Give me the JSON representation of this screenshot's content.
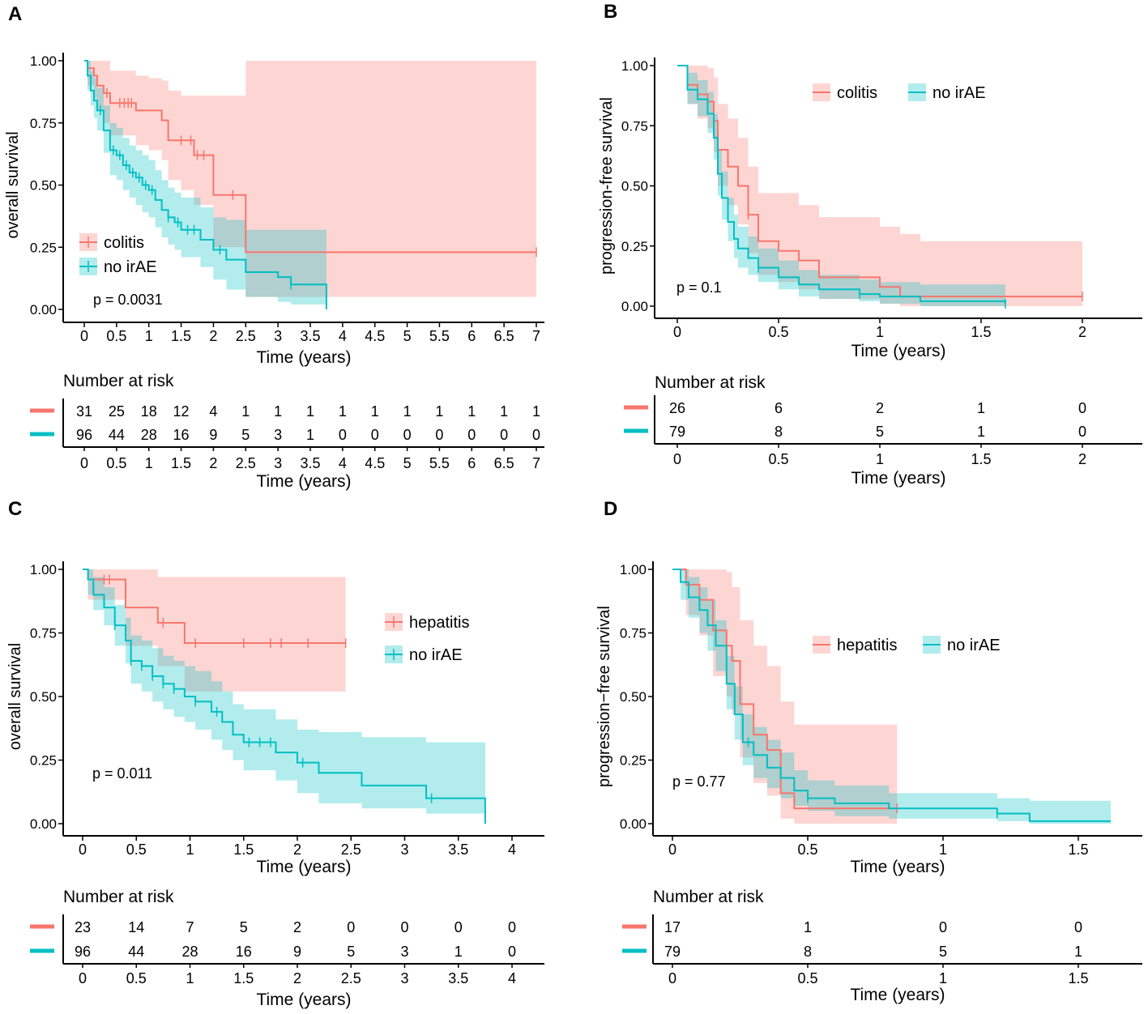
{
  "colors": {
    "event": "#F8766D",
    "no_irae": "#00BFC4",
    "event_band": "#F8766D",
    "no_irae_band": "#00BFC4"
  },
  "chart_data": [
    {
      "panel_label": "A",
      "type": "line",
      "subtype": "kaplan-meier",
      "ylabel": "overall survival",
      "xlabel": "Time (years)",
      "xlim": [
        0,
        7
      ],
      "ylim": [
        0,
        1
      ],
      "x_ticks": [
        0,
        0.5,
        1,
        1.5,
        2,
        2.5,
        3,
        3.5,
        4,
        4.5,
        5,
        5.5,
        6,
        6.5,
        7
      ],
      "x_tick_labels": [
        "0",
        "0.5",
        "1",
        "1.5",
        "2",
        "2.5",
        "3",
        "3.5",
        "4",
        "4.5",
        "5",
        "5.5",
        "6",
        "6.5",
        "7"
      ],
      "y_ticks": [
        0,
        0.25,
        0.5,
        0.75,
        1
      ],
      "y_tick_labels": [
        "0.00",
        "0.25",
        "0.50",
        "0.75",
        "1.00"
      ],
      "legend": [
        "colitis",
        "no irAE"
      ],
      "legend_position": "bottom-left",
      "pvalue": "p = 0.0031",
      "series": [
        {
          "name": "colitis",
          "time": [
            0,
            0.05,
            0.15,
            0.2,
            0.3,
            0.4,
            0.5,
            0.8,
            1.0,
            1.2,
            1.3,
            1.5,
            1.7,
            2.0,
            2.5,
            7.0
          ],
          "surv": [
            1,
            0.97,
            0.94,
            0.9,
            0.87,
            0.83,
            0.83,
            0.8,
            0.8,
            0.76,
            0.68,
            0.68,
            0.62,
            0.46,
            0.23,
            0.23
          ],
          "lower": [
            1,
            0.9,
            0.85,
            0.8,
            0.75,
            0.7,
            0.7,
            0.66,
            0.64,
            0.6,
            0.52,
            0.48,
            0.42,
            0.25,
            0.05,
            0.05
          ],
          "upper": [
            1,
            1,
            1,
            1,
            1,
            0.96,
            0.96,
            0.94,
            0.93,
            0.92,
            0.88,
            0.86,
            0.86,
            0.86,
            1,
            1
          ],
          "censor_times": [
            0.35,
            0.55,
            0.62,
            0.68,
            0.73,
            1.5,
            1.65,
            1.75,
            1.85,
            2.3,
            7.0
          ]
        },
        {
          "name": "no irAE",
          "time": [
            0,
            0.05,
            0.1,
            0.15,
            0.2,
            0.3,
            0.4,
            0.5,
            0.6,
            0.7,
            0.8,
            0.9,
            1.0,
            1.1,
            1.2,
            1.3,
            1.4,
            1.5,
            1.8,
            2.0,
            2.2,
            2.5,
            3.0,
            3.2,
            3.75
          ],
          "surv": [
            1,
            0.94,
            0.88,
            0.84,
            0.8,
            0.72,
            0.64,
            0.62,
            0.58,
            0.55,
            0.53,
            0.5,
            0.48,
            0.44,
            0.4,
            0.37,
            0.35,
            0.32,
            0.28,
            0.24,
            0.2,
            0.15,
            0.13,
            0.1,
            0.0
          ],
          "lower": [
            1,
            0.88,
            0.82,
            0.77,
            0.72,
            0.63,
            0.54,
            0.52,
            0.48,
            0.45,
            0.42,
            0.39,
            0.37,
            0.33,
            0.29,
            0.26,
            0.24,
            0.21,
            0.17,
            0.12,
            0.08,
            0.05,
            0.03,
            0.02,
            0.0
          ],
          "upper": [
            1,
            1,
            0.96,
            0.93,
            0.89,
            0.82,
            0.75,
            0.73,
            0.69,
            0.66,
            0.64,
            0.62,
            0.6,
            0.56,
            0.52,
            0.49,
            0.47,
            0.45,
            0.41,
            0.37,
            0.36,
            0.32,
            0.32,
            0.32,
            0.32
          ],
          "censor_times": [
            0.25,
            0.45,
            0.55,
            0.65,
            0.75,
            0.85,
            0.95,
            1.05,
            1.3,
            1.45,
            1.6,
            1.7,
            2.1,
            3.2
          ]
        }
      ],
      "risk_table": {
        "title": "Number at risk",
        "times": [
          0,
          0.5,
          1,
          1.5,
          2,
          2.5,
          3,
          3.5,
          4,
          4.5,
          5,
          5.5,
          6,
          6.5,
          7
        ],
        "rows": [
          {
            "group": "colitis",
            "counts": [
              "31",
              "25",
              "18",
              "12",
              "4",
              "1",
              "1",
              "1",
              "1",
              "1",
              "1",
              "1",
              "1",
              "1",
              "1"
            ]
          },
          {
            "group": "no irAE",
            "counts": [
              "96",
              "44",
              "28",
              "16",
              "9",
              "5",
              "3",
              "1",
              "0",
              "0",
              "0",
              "0",
              "0",
              "0",
              "0"
            ]
          }
        ],
        "xlabel": "Time (years)",
        "tick_labels": [
          "0",
          "0.5",
          "1",
          "1.5",
          "2",
          "2.5",
          "3",
          "3.5",
          "4",
          "4.5",
          "5",
          "5.5",
          "6",
          "6.5",
          "7"
        ]
      }
    },
    {
      "panel_label": "B",
      "type": "line",
      "subtype": "kaplan-meier",
      "ylabel": "progression-free survival",
      "xlabel": "Time (years)",
      "xlim": [
        0,
        2.2
      ],
      "ylim": [
        0,
        1
      ],
      "x_ticks": [
        0,
        0.5,
        1,
        1.5,
        2
      ],
      "x_tick_labels": [
        "0",
        "0.5",
        "1",
        "1.5",
        "2"
      ],
      "y_ticks": [
        0,
        0.25,
        0.5,
        0.75,
        1
      ],
      "y_tick_labels": [
        "0.00",
        "0.25",
        "0.50",
        "0.75",
        "1.00"
      ],
      "legend": [
        "colitis",
        "no irAE"
      ],
      "legend_position": "top-right",
      "pvalue": "p = 0.1",
      "series": [
        {
          "name": "colitis",
          "time": [
            0,
            0.05,
            0.1,
            0.15,
            0.18,
            0.2,
            0.25,
            0.3,
            0.35,
            0.4,
            0.5,
            0.6,
            0.7,
            1.0,
            1.1,
            1.2,
            2.0
          ],
          "surv": [
            1,
            0.92,
            0.88,
            0.85,
            0.77,
            0.65,
            0.58,
            0.5,
            0.38,
            0.27,
            0.23,
            0.19,
            0.12,
            0.08,
            0.04,
            0.04,
            0.04
          ],
          "lower": [
            1,
            0.84,
            0.78,
            0.74,
            0.64,
            0.5,
            0.42,
            0.34,
            0.22,
            0.13,
            0.1,
            0.07,
            0.03,
            0.01,
            0.0,
            0.0,
            0.0
          ],
          "upper": [
            1,
            1,
            1,
            0.99,
            0.95,
            0.84,
            0.78,
            0.7,
            0.58,
            0.47,
            0.47,
            0.42,
            0.37,
            0.33,
            0.3,
            0.27,
            0.26
          ],
          "censor_times": [
            0.2,
            0.35,
            2.0
          ]
        },
        {
          "name": "no irAE",
          "time": [
            0,
            0.05,
            0.1,
            0.15,
            0.18,
            0.2,
            0.22,
            0.25,
            0.28,
            0.3,
            0.35,
            0.4,
            0.5,
            0.6,
            0.7,
            0.9,
            1.0,
            1.2,
            1.62
          ],
          "surv": [
            1,
            0.9,
            0.86,
            0.8,
            0.7,
            0.55,
            0.45,
            0.35,
            0.28,
            0.24,
            0.2,
            0.16,
            0.12,
            0.09,
            0.07,
            0.05,
            0.04,
            0.02,
            0.01
          ],
          "lower": [
            1,
            0.84,
            0.79,
            0.72,
            0.61,
            0.46,
            0.36,
            0.27,
            0.2,
            0.16,
            0.13,
            0.1,
            0.07,
            0.04,
            0.03,
            0.02,
            0.01,
            0.0,
            0.0
          ],
          "upper": [
            1,
            0.97,
            0.94,
            0.89,
            0.8,
            0.65,
            0.56,
            0.45,
            0.38,
            0.33,
            0.29,
            0.24,
            0.19,
            0.15,
            0.13,
            0.11,
            0.1,
            0.09,
            0.08
          ],
          "censor_times": [
            0.4,
            0.9,
            1.62
          ]
        }
      ],
      "risk_table": {
        "title": "Number at risk",
        "times": [
          0,
          0.5,
          1,
          1.5,
          2
        ],
        "rows": [
          {
            "group": "colitis",
            "counts": [
              "26",
              "6",
              "2",
              "1",
              "0"
            ]
          },
          {
            "group": "no irAE",
            "counts": [
              "79",
              "8",
              "5",
              "1",
              "0"
            ]
          }
        ],
        "xlabel": "Time (years)",
        "tick_labels": [
          "0",
          "0.5",
          "1",
          "1.5",
          "2"
        ]
      }
    },
    {
      "panel_label": "C",
      "type": "line",
      "subtype": "kaplan-meier",
      "ylabel": "overall survival",
      "xlabel": "Time (years)",
      "xlim": [
        0,
        4.25
      ],
      "ylim": [
        0,
        1
      ],
      "x_ticks": [
        0,
        0.5,
        1,
        1.5,
        2,
        2.5,
        3,
        3.5,
        4
      ],
      "x_tick_labels": [
        "0",
        "0.5",
        "1",
        "1.5",
        "2",
        "2.5",
        "3",
        "3.5",
        "4"
      ],
      "y_ticks": [
        0,
        0.25,
        0.5,
        0.75,
        1
      ],
      "y_tick_labels": [
        "0.00",
        "0.25",
        "0.50",
        "0.75",
        "1.00"
      ],
      "legend": [
        "hepatitis",
        "no irAE"
      ],
      "legend_position": "top-right",
      "pvalue": "p = 0.011",
      "series": [
        {
          "name": "hepatitis",
          "time": [
            0,
            0.05,
            0.15,
            0.4,
            0.7,
            0.95,
            2.45
          ],
          "surv": [
            1,
            0.96,
            0.96,
            0.85,
            0.79,
            0.71,
            0.71
          ],
          "lower": [
            1,
            0.88,
            0.88,
            0.7,
            0.62,
            0.52,
            0.52
          ],
          "upper": [
            1,
            1,
            1,
            1,
            0.97,
            0.97,
            0.97
          ],
          "censor_times": [
            0.2,
            0.25,
            0.75,
            1.05,
            1.5,
            1.75,
            1.85,
            2.1,
            2.45
          ]
        },
        {
          "name": "no irAE",
          "time": [
            0,
            0.05,
            0.1,
            0.2,
            0.3,
            0.4,
            0.45,
            0.55,
            0.65,
            0.75,
            0.85,
            0.95,
            1.05,
            1.2,
            1.3,
            1.4,
            1.5,
            1.8,
            2.0,
            2.2,
            2.6,
            3.2,
            3.75
          ],
          "surv": [
            1,
            0.96,
            0.9,
            0.85,
            0.78,
            0.72,
            0.64,
            0.62,
            0.58,
            0.55,
            0.53,
            0.5,
            0.48,
            0.44,
            0.4,
            0.35,
            0.32,
            0.28,
            0.24,
            0.2,
            0.15,
            0.1,
            0.0
          ],
          "lower": [
            1,
            0.9,
            0.84,
            0.78,
            0.7,
            0.63,
            0.55,
            0.52,
            0.48,
            0.45,
            0.42,
            0.4,
            0.37,
            0.33,
            0.29,
            0.25,
            0.21,
            0.17,
            0.12,
            0.08,
            0.06,
            0.04,
            0.0
          ],
          "upper": [
            1,
            1,
            0.97,
            0.93,
            0.86,
            0.81,
            0.74,
            0.72,
            0.69,
            0.66,
            0.64,
            0.62,
            0.6,
            0.56,
            0.52,
            0.47,
            0.45,
            0.41,
            0.37,
            0.36,
            0.34,
            0.32,
            0.32
          ],
          "censor_times": [
            0.3,
            0.45,
            0.55,
            0.65,
            0.75,
            0.85,
            1.05,
            1.25,
            1.55,
            1.65,
            1.75,
            2.05,
            3.25
          ]
        }
      ],
      "risk_table": {
        "title": "Number at risk",
        "times": [
          0,
          0.5,
          1,
          1.5,
          2,
          2.5,
          3,
          3.5,
          4
        ],
        "rows": [
          {
            "group": "hepatitis",
            "counts": [
              "23",
              "14",
              "7",
              "5",
              "2",
              "0",
              "0",
              "0",
              "0"
            ]
          },
          {
            "group": "no irAE",
            "counts": [
              "96",
              "44",
              "28",
              "16",
              "9",
              "5",
              "3",
              "1",
              "0"
            ]
          }
        ],
        "xlabel": "Time (years)",
        "tick_labels": [
          "0",
          "0.5",
          "1",
          "1.5",
          "2",
          "2.5",
          "3",
          "3.5",
          "4"
        ]
      }
    },
    {
      "panel_label": "D",
      "type": "line",
      "subtype": "kaplan-meier",
      "ylabel": "progression−free survival",
      "xlabel": "Time (years)",
      "xlim": [
        0,
        1.72
      ],
      "ylim": [
        0,
        1
      ],
      "x_ticks": [
        0,
        0.5,
        1,
        1.5
      ],
      "x_tick_labels": [
        "0",
        "0.5",
        "1",
        "1.5"
      ],
      "y_ticks": [
        0,
        0.25,
        0.5,
        0.75,
        1
      ],
      "y_tick_labels": [
        "0.00",
        "0.25",
        "0.50",
        "0.75",
        "1.00"
      ],
      "legend": [
        "hepatitis",
        "no irAE"
      ],
      "legend_position": "top-right",
      "pvalue": "p = 0.77",
      "series": [
        {
          "name": "hepatitis",
          "time": [
            0,
            0.05,
            0.1,
            0.15,
            0.2,
            0.22,
            0.25,
            0.3,
            0.35,
            0.4,
            0.45,
            0.83
          ],
          "surv": [
            1,
            0.94,
            0.88,
            0.76,
            0.7,
            0.64,
            0.47,
            0.35,
            0.29,
            0.12,
            0.06,
            0.06
          ],
          "lower": [
            1,
            0.82,
            0.74,
            0.58,
            0.5,
            0.43,
            0.26,
            0.16,
            0.11,
            0.02,
            0.0,
            0.0
          ],
          "upper": [
            1,
            1,
            1,
            1,
            0.99,
            0.93,
            0.8,
            0.7,
            0.62,
            0.48,
            0.39,
            0.39
          ],
          "censor_times": [
            0.83
          ]
        },
        {
          "name": "no irAE",
          "time": [
            0,
            0.03,
            0.06,
            0.1,
            0.13,
            0.16,
            0.2,
            0.23,
            0.26,
            0.3,
            0.35,
            0.4,
            0.45,
            0.5,
            0.6,
            0.8,
            1.2,
            1.32,
            1.62
          ],
          "surv": [
            1,
            0.95,
            0.89,
            0.84,
            0.78,
            0.7,
            0.55,
            0.43,
            0.32,
            0.27,
            0.22,
            0.18,
            0.13,
            0.1,
            0.08,
            0.06,
            0.04,
            0.01,
            0.01
          ],
          "lower": [
            1,
            0.88,
            0.81,
            0.75,
            0.68,
            0.6,
            0.45,
            0.33,
            0.23,
            0.18,
            0.14,
            0.1,
            0.07,
            0.05,
            0.03,
            0.02,
            0.01,
            0.0,
            0.0
          ],
          "upper": [
            1,
            1,
            0.97,
            0.93,
            0.88,
            0.8,
            0.66,
            0.54,
            0.43,
            0.38,
            0.33,
            0.28,
            0.21,
            0.17,
            0.15,
            0.12,
            0.1,
            0.09,
            0.09
          ],
          "censor_times": [
            0.28,
            0.5,
            1.2
          ]
        }
      ],
      "risk_table": {
        "title": "Number at risk",
        "times": [
          0,
          0.5,
          1,
          1.5
        ],
        "rows": [
          {
            "group": "hepatitis",
            "counts": [
              "17",
              "1",
              "0",
              "0"
            ]
          },
          {
            "group": "no irAE",
            "counts": [
              "79",
              "8",
              "5",
              "1"
            ]
          }
        ],
        "xlabel": "Time (years)",
        "tick_labels": [
          "0",
          "0.5",
          "1",
          "1.5"
        ]
      }
    }
  ]
}
